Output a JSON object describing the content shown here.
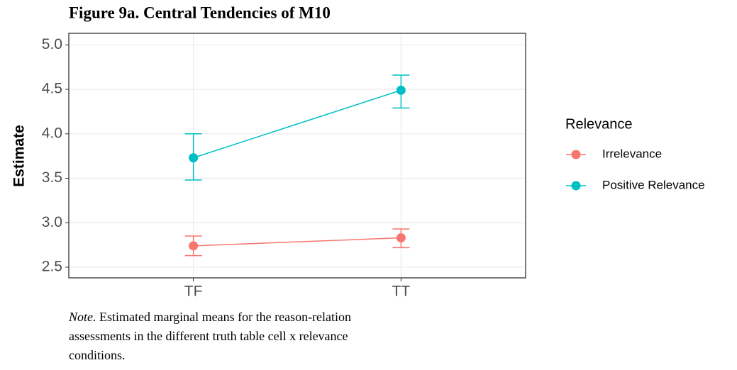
{
  "chart_data": {
    "type": "line",
    "title": "Figure 9a. Central Tendencies of M10",
    "y_label": "Estimate",
    "categories": [
      "TF",
      "TT"
    ],
    "series": [
      {
        "name": "Irrelevance",
        "color": "#F8766D",
        "values": [
          2.74,
          2.83
        ],
        "lower": [
          2.63,
          2.72
        ],
        "upper": [
          2.85,
          2.93
        ]
      },
      {
        "name": "Positive Relevance",
        "color": "#00BFC4",
        "values": [
          3.73,
          4.49
        ],
        "lower": [
          3.48,
          4.29
        ],
        "upper": [
          4.0,
          4.66
        ]
      }
    ],
    "ylim": [
      2.38,
      5.13
    ],
    "yticks": [
      {
        "value": 2.5,
        "label": "2.5"
      },
      {
        "value": 3,
        "label": "3.0"
      },
      {
        "value": 3.5,
        "label": "3.5"
      },
      {
        "value": 4,
        "label": "4.0"
      },
      {
        "value": 4.5,
        "label": "4.5"
      },
      {
        "value": 5,
        "label": "5.0"
      }
    ],
    "grid": true,
    "legend_title": "Relevance",
    "legend_position": "right",
    "note_label": "Note.",
    "note_text": " Estimated marginal means for the reason-relation assessments in the different truth table cell x relevance conditions."
  }
}
